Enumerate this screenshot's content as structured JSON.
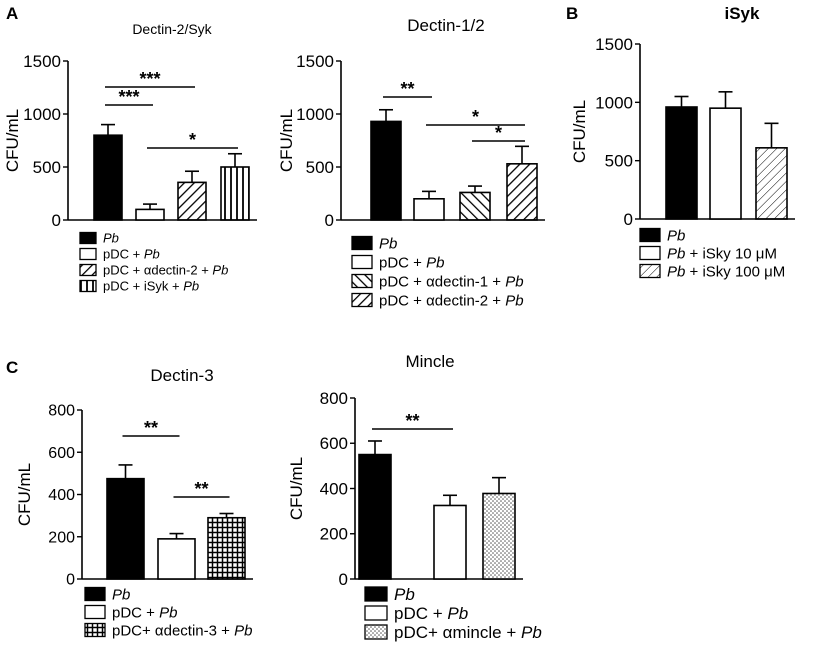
{
  "figure": {
    "panel_labels": {
      "a": "A",
      "b": "B",
      "c": "C"
    }
  },
  "chart_data": [
    {
      "id": "dectin2syk",
      "type": "bar",
      "panel": "A",
      "title": "Dectin-2/Syk",
      "ylabel": "CFU/mL",
      "ylim": [
        0,
        1500
      ],
      "yticks": [
        "0",
        "500",
        "1000",
        "1500"
      ],
      "categories": [
        "Pb",
        "pDC + Pb",
        "pDC + αdectin-2 + Pb",
        "pDC + iSyk + Pb"
      ],
      "values": [
        800,
        100,
        355,
        500
      ],
      "errors": [
        100,
        50,
        105,
        125
      ],
      "legend_items": [
        {
          "pre": "",
          "italic": "Pb",
          "post": ""
        },
        {
          "pre": "pDC + ",
          "italic": "Pb",
          "post": ""
        },
        {
          "pre": "pDC + αdectin-2 + ",
          "italic": "Pb",
          "post": ""
        },
        {
          "pre": "pDC + iSyk + ",
          "italic": "Pb",
          "post": ""
        }
      ],
      "significance": [
        {
          "from": 0,
          "to": 2,
          "label": "***"
        },
        {
          "from": 0,
          "to": 1,
          "label": "***"
        },
        {
          "from": 1,
          "to": 3,
          "label": "*"
        }
      ]
    },
    {
      "id": "dectin12",
      "type": "bar",
      "panel": "A",
      "title": "Dectin-1/2",
      "ylabel": "CFU/mL",
      "ylim": [
        0,
        1500
      ],
      "yticks": [
        "0",
        "500",
        "1000",
        "1500"
      ],
      "categories": [
        "Pb",
        "pDC + Pb",
        "pDC + αdectin-1 + Pb",
        "pDC + αdectin-2 + Pb"
      ],
      "values": [
        930,
        200,
        260,
        530
      ],
      "errors": [
        110,
        70,
        60,
        165
      ],
      "legend_items": [
        {
          "pre": "",
          "italic": "Pb",
          "post": ""
        },
        {
          "pre": "pDC + ",
          "italic": "Pb",
          "post": ""
        },
        {
          "pre": "pDC + αdectin-1 + ",
          "italic": "Pb",
          "post": ""
        },
        {
          "pre": "pDC + αdectin-2 + ",
          "italic": "Pb",
          "post": ""
        }
      ],
      "significance": [
        {
          "from": 0,
          "to": 1,
          "label": "**"
        },
        {
          "from": 1,
          "to": 3,
          "label": "*"
        },
        {
          "from": 2,
          "to": 3,
          "label": "*"
        }
      ]
    },
    {
      "id": "isyk",
      "type": "bar",
      "panel": "B",
      "title": "iSyk",
      "ylabel": "CFU/mL",
      "ylim": [
        0,
        1500
      ],
      "yticks": [
        "0",
        "500",
        "1000",
        "1500"
      ],
      "categories": [
        "Pb",
        "Pb + iSky 10 μM",
        "Pb + iSky 100 μM"
      ],
      "values": [
        960,
        950,
        610
      ],
      "errors": [
        90,
        140,
        210
      ],
      "legend_items": [
        {
          "pre": "",
          "italic": "Pb",
          "post": ""
        },
        {
          "pre": "",
          "italic": "Pb",
          "post": " + iSky 10 μM"
        },
        {
          "pre": "",
          "italic": "Pb",
          "post": " + iSky 100 μM"
        }
      ],
      "significance": []
    },
    {
      "id": "dectin3",
      "type": "bar",
      "panel": "C",
      "title": "Dectin-3",
      "ylabel": "CFU/mL",
      "ylim": [
        0,
        800
      ],
      "yticks": [
        "0",
        "200",
        "400",
        "600",
        "800"
      ],
      "categories": [
        "Pb",
        "pDC + Pb",
        "pDC+ αdectin-3 + Pb"
      ],
      "values": [
        475,
        190,
        290
      ],
      "errors": [
        65,
        25,
        20
      ],
      "legend_items": [
        {
          "pre": "",
          "italic": "Pb",
          "post": ""
        },
        {
          "pre": "pDC + ",
          "italic": "Pb",
          "post": ""
        },
        {
          "pre": "pDC+ αdectin-3 + ",
          "italic": "Pb",
          "post": ""
        }
      ],
      "significance": [
        {
          "from": 0,
          "to": 1,
          "label": "**"
        },
        {
          "from": 1,
          "to": 2,
          "label": "**"
        }
      ]
    },
    {
      "id": "mincle",
      "type": "bar",
      "panel": "C",
      "title": "Mincle",
      "ylabel": "CFU/mL",
      "ylim": [
        0,
        800
      ],
      "yticks": [
        "0",
        "200",
        "400",
        "600",
        "800"
      ],
      "categories": [
        "Pb",
        "pDC + Pb",
        "pDC+ αmincle + Pb"
      ],
      "values": [
        550,
        325,
        378
      ],
      "errors": [
        60,
        45,
        70
      ],
      "legend_items": [
        {
          "pre": "",
          "italic": "Pb",
          "post": ""
        },
        {
          "pre": "pDC + ",
          "italic": "Pb",
          "post": ""
        },
        {
          "pre": "pDC+ αmincle + ",
          "italic": "Pb",
          "post": ""
        }
      ],
      "significance": [
        {
          "from": 0,
          "to": 1,
          "label": "**"
        }
      ]
    }
  ]
}
